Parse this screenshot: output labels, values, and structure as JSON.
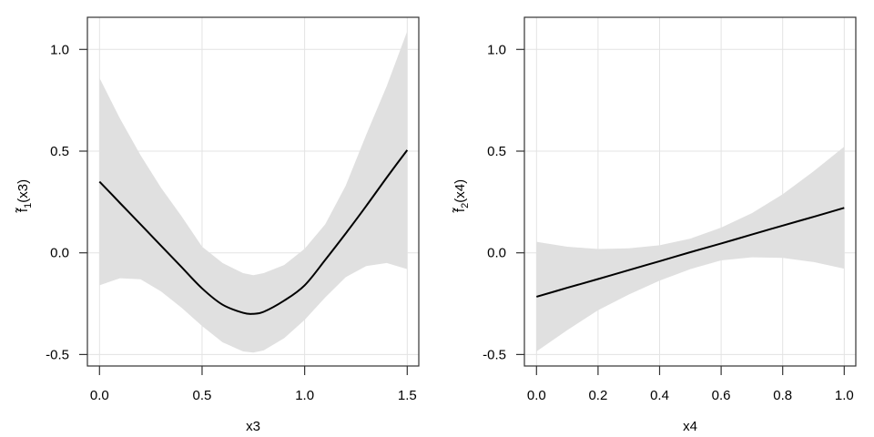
{
  "chart_data": [
    {
      "type": "line",
      "xlabel": "x3",
      "ylabel": {
        "main": "f̃",
        "sub": "1",
        "arg": "(x3)"
      },
      "xlim": [
        0,
        1.5
      ],
      "ylim": [
        -0.5,
        1.0
      ],
      "xticks": [
        "0.0",
        "0.5",
        "1.0",
        "1.5"
      ],
      "yticks": [
        "-0.5",
        "0.0",
        "0.5",
        "1.0"
      ],
      "grid": true,
      "x": [
        0,
        0.1,
        0.2,
        0.3,
        0.4,
        0.5,
        0.6,
        0.7,
        0.75,
        0.8,
        0.9,
        1.0,
        1.1,
        1.2,
        1.3,
        1.4,
        1.5
      ],
      "fit": [
        0.35,
        0.245,
        0.14,
        0.035,
        -0.07,
        -0.175,
        -0.255,
        -0.295,
        -0.3,
        -0.29,
        -0.235,
        -0.16,
        -0.035,
        0.095,
        0.23,
        0.37,
        0.505
      ],
      "upper": [
        0.86,
        0.66,
        0.48,
        0.32,
        0.18,
        0.03,
        -0.05,
        -0.1,
        -0.11,
        -0.1,
        -0.06,
        0.02,
        0.14,
        0.33,
        0.58,
        0.82,
        1.09
      ],
      "lower": [
        -0.16,
        -0.125,
        -0.13,
        -0.19,
        -0.27,
        -0.36,
        -0.44,
        -0.485,
        -0.49,
        -0.48,
        -0.42,
        -0.33,
        -0.22,
        -0.12,
        -0.065,
        -0.05,
        -0.08
      ],
      "colors": {
        "line": "#000000",
        "band": "#e0e0e0",
        "grid": "#e3e3e3"
      }
    },
    {
      "type": "line",
      "xlabel": "x4",
      "ylabel": {
        "main": "f̃",
        "sub": "2",
        "arg": "(x4)"
      },
      "xlim": [
        0,
        1.0
      ],
      "ylim": [
        -0.5,
        1.0
      ],
      "xticks": [
        "0.0",
        "0.2",
        "0.4",
        "0.6",
        "0.8",
        "1.0"
      ],
      "yticks": [
        "-0.5",
        "0.0",
        "0.5",
        "1.0"
      ],
      "grid": true,
      "x": [
        0,
        0.1,
        0.2,
        0.3,
        0.4,
        0.5,
        0.6,
        0.7,
        0.8,
        0.9,
        1.0
      ],
      "fit": [
        -0.216,
        -0.172,
        -0.129,
        -0.085,
        -0.041,
        0.003,
        0.046,
        0.09,
        0.134,
        0.177,
        0.221
      ],
      "upper": [
        0.054,
        0.03,
        0.019,
        0.022,
        0.037,
        0.07,
        0.124,
        0.195,
        0.288,
        0.4,
        0.522
      ],
      "lower": [
        -0.485,
        -0.38,
        -0.282,
        -0.205,
        -0.137,
        -0.08,
        -0.037,
        -0.022,
        -0.025,
        -0.045,
        -0.078
      ],
      "colors": {
        "line": "#000000",
        "band": "#e0e0e0",
        "grid": "#e3e3e3"
      }
    }
  ]
}
